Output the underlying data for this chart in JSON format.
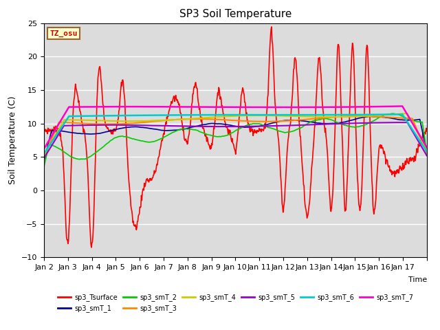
{
  "title": "SP3 Soil Temperature",
  "ylabel": "Soil Temperature (C)",
  "xlabel": "Time",
  "ylim": [
    -10,
    25
  ],
  "bg_color": "#dcdcdc",
  "fig_color": "#ffffff",
  "tz_label": "TZ_osu",
  "series_order": [
    "sp3_Tsurface",
    "sp3_smT_1",
    "sp3_smT_2",
    "sp3_smT_3",
    "sp3_smT_4",
    "sp3_smT_5",
    "sp3_smT_6",
    "sp3_smT_7"
  ],
  "series": {
    "sp3_Tsurface": {
      "color": "#ff0000",
      "lw": 1.2
    },
    "sp3_smT_1": {
      "color": "#000099",
      "lw": 1.2
    },
    "sp3_smT_2": {
      "color": "#00cc00",
      "lw": 1.2
    },
    "sp3_smT_3": {
      "color": "#ff8800",
      "lw": 1.5
    },
    "sp3_smT_4": {
      "color": "#cccc00",
      "lw": 1.5
    },
    "sp3_smT_5": {
      "color": "#9900cc",
      "lw": 1.5
    },
    "sp3_smT_6": {
      "color": "#00cccc",
      "lw": 1.8
    },
    "sp3_smT_7": {
      "color": "#ff00cc",
      "lw": 1.8
    }
  },
  "xtick_labels": [
    "Jan 2",
    "Jan 3",
    "Jan 4",
    "Jan 5",
    "Jan 6",
    "Jan 7",
    "Jan 8",
    "Jan 9",
    "Jan 10",
    "Jan 11",
    "Jan 12",
    "Jan 13",
    "Jan 14",
    "Jan 15",
    "Jan 16",
    "Jan 17"
  ],
  "n_days": 16,
  "pts_per_day": 48
}
